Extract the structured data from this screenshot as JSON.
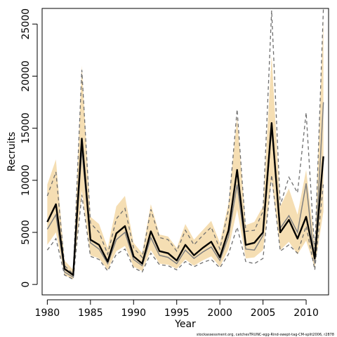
{
  "chart_data": {
    "type": "line",
    "xlabel": "Year",
    "ylabel": "Recruits",
    "footnote": "stockassessment.org, catchesTRUNC-egg-Rind-swept-tag-CM-split2006, r2878",
    "xlim": [
      1979.4,
      2012.6
    ],
    "ylim": [
      -1000,
      26500
    ],
    "x_ticks": [
      1980,
      1985,
      1990,
      1995,
      2000,
      2005,
      2010
    ],
    "y_ticks": [
      0,
      5000,
      10000,
      15000,
      20000,
      25000
    ],
    "colors": {
      "band": "#f5deb3",
      "estimate": "#000000",
      "alternative": "#808080",
      "alt_bounds": "#6e6e6e",
      "frame": "#000000"
    },
    "x": [
      1980,
      1981,
      1982,
      1983,
      1984,
      1985,
      1986,
      1987,
      1988,
      1989,
      1990,
      1991,
      1992,
      1993,
      1994,
      1995,
      1996,
      1997,
      1998,
      1999,
      2000,
      2001,
      2002,
      2003,
      2004,
      2005,
      2006,
      2007,
      2008,
      2009,
      2010,
      2011,
      2012
    ],
    "series": [
      {
        "role": "estimate",
        "values": [
          6000,
          7700,
          1500,
          900,
          14000,
          4300,
          3800,
          2200,
          4900,
          5600,
          2700,
          2000,
          5100,
          3200,
          3000,
          2300,
          3800,
          2800,
          3500,
          4100,
          2600,
          5200,
          11000,
          3800,
          4000,
          5000,
          15500,
          5000,
          6200,
          4400,
          6500,
          2500,
          12300
        ]
      },
      {
        "role": "band_upper",
        "values": [
          9600,
          12000,
          2300,
          1400,
          21000,
          6500,
          5800,
          3500,
          7500,
          8500,
          4000,
          3000,
          7700,
          4800,
          4600,
          3500,
          5800,
          4300,
          5200,
          6100,
          4000,
          7800,
          16000,
          5700,
          6000,
          7500,
          22000,
          7500,
          9200,
          6700,
          11000,
          3800,
          25500
        ]
      },
      {
        "role": "band_lower",
        "values": [
          3800,
          5000,
          900,
          500,
          9000,
          2800,
          2500,
          1400,
          3200,
          3700,
          1700,
          1300,
          3300,
          2000,
          1900,
          1500,
          2400,
          1800,
          2300,
          2700,
          1700,
          3400,
          7200,
          2500,
          2600,
          3300,
          10000,
          3300,
          4100,
          2900,
          4200,
          1600,
          7000
        ]
      },
      {
        "role": "alternative",
        "values": [
          5300,
          6700,
          1200,
          700,
          13000,
          4000,
          3400,
          2000,
          4300,
          5000,
          2400,
          1800,
          4500,
          2800,
          2600,
          2000,
          3300,
          2500,
          3100,
          3600,
          2300,
          4600,
          9600,
          3400,
          3300,
          4700,
          15000,
          5400,
          6600,
          5000,
          9700,
          2000,
          17500
        ]
      },
      {
        "role": "alternative_upper",
        "values": [
          8500,
          10800,
          1800,
          1000,
          20600,
          5900,
          5000,
          2900,
          6300,
          7300,
          3500,
          2600,
          7200,
          4500,
          4300,
          3200,
          5200,
          3800,
          4700,
          5500,
          3400,
          7200,
          16800,
          5100,
          5200,
          7000,
          26300,
          7600,
          10300,
          8800,
          16500,
          3000,
          26500
        ]
      },
      {
        "role": "alternative_lower",
        "values": [
          3300,
          4400,
          900,
          500,
          8600,
          2700,
          2400,
          1300,
          2900,
          3400,
          1600,
          1200,
          3000,
          1900,
          1800,
          1400,
          2200,
          1700,
          2100,
          2400,
          1600,
          2900,
          5500,
          2200,
          2000,
          2500,
          10500,
          3200,
          3800,
          3000,
          5600,
          1400,
          9700
        ]
      }
    ]
  }
}
